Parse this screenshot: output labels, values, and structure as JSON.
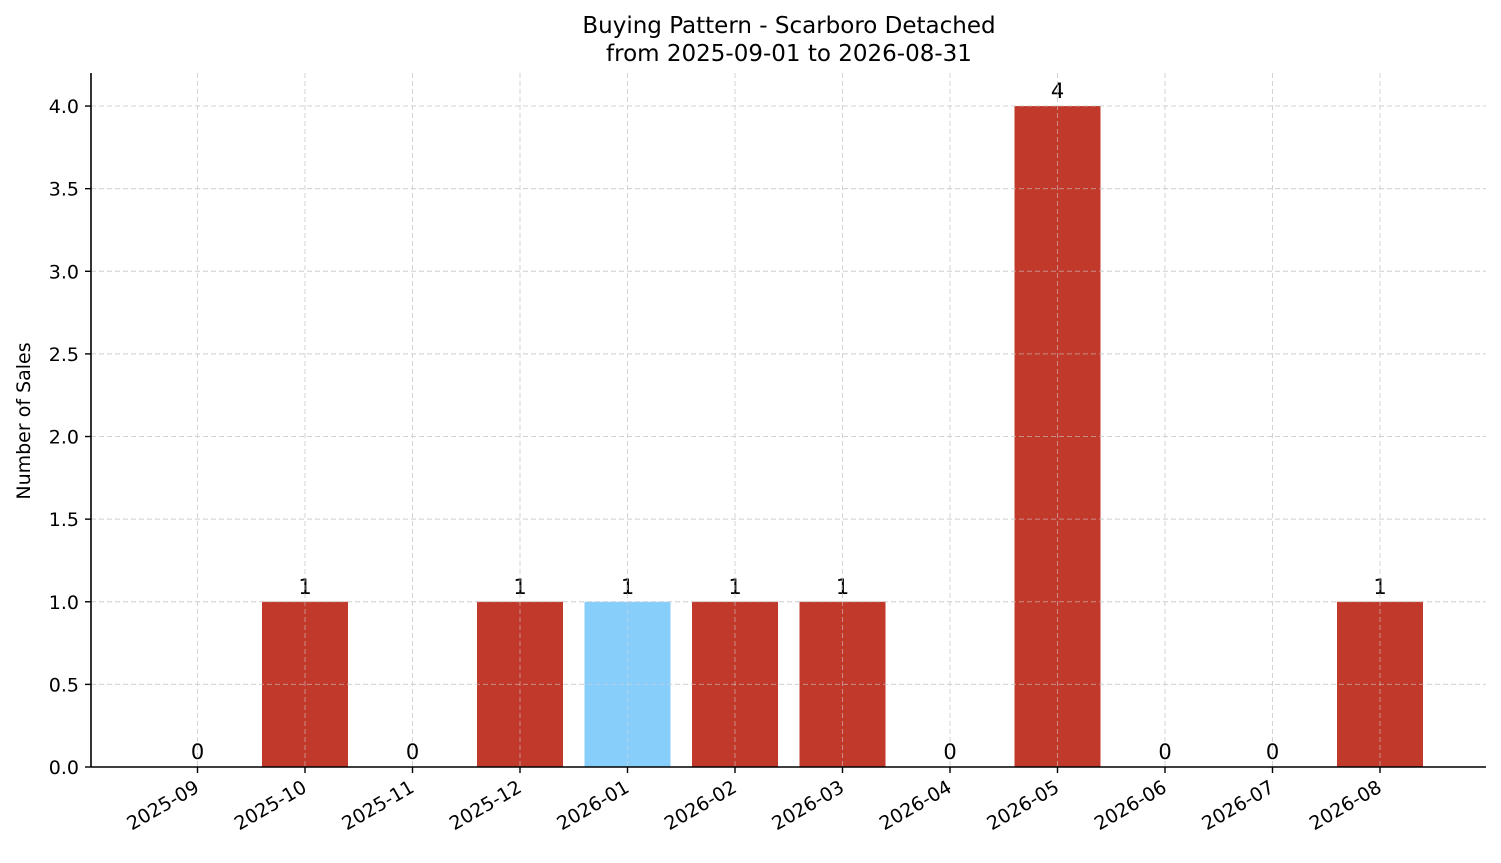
{
  "chart_data": {
    "type": "bar",
    "title": "Buying Pattern - Scarboro Detached",
    "subtitle": "from 2025-09-01 to 2026-08-31",
    "xlabel": "",
    "ylabel": "Number of Sales",
    "categories": [
      "2025-09",
      "2025-10",
      "2025-11",
      "2025-12",
      "2026-01",
      "2026-02",
      "2026-03",
      "2026-04",
      "2026-05",
      "2026-06",
      "2026-07",
      "2026-08"
    ],
    "values": [
      0,
      1,
      0,
      1,
      1,
      1,
      1,
      0,
      4,
      0,
      0,
      1
    ],
    "data_labels": [
      "0",
      "1",
      "0",
      "1",
      "1",
      "1",
      "1",
      "0",
      "4",
      "0",
      "0",
      "1"
    ],
    "bar_colors": [
      "#c0392b",
      "#c0392b",
      "#c0392b",
      "#c0392b",
      "#87cefa",
      "#c0392b",
      "#c0392b",
      "#c0392b",
      "#c0392b",
      "#c0392b",
      "#c0392b",
      "#c0392b"
    ],
    "ylim": [
      0,
      4.2
    ],
    "yticks": [
      0.0,
      0.5,
      1.0,
      1.5,
      2.0,
      2.5,
      3.0,
      3.5,
      4.0
    ],
    "ytick_labels": [
      "0.0",
      "0.5",
      "1.0",
      "1.5",
      "2.0",
      "2.5",
      "3.0",
      "3.5",
      "4.0"
    ],
    "grid": true,
    "legend": "none"
  }
}
